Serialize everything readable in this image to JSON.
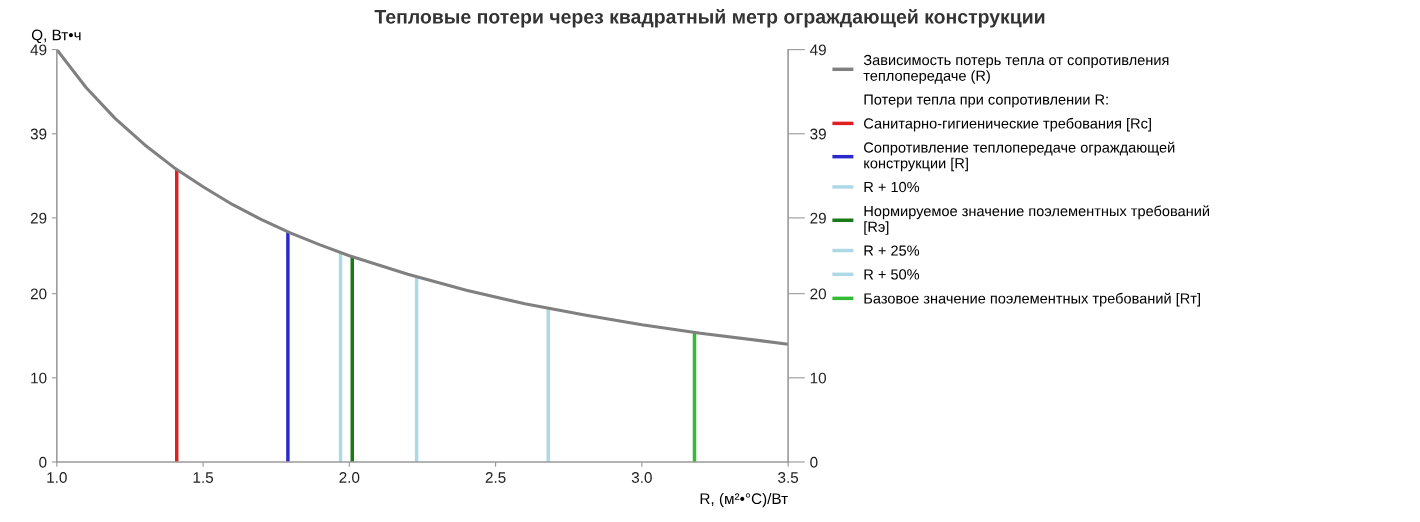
{
  "chart_data": {
    "type": "line",
    "title": "Тепловые потери через квадратный метр ограждающей конструкции",
    "xlabel": "R, (м²•°C)/Вт",
    "ylabel": "Q, Вт•ч",
    "annotations": [
      "Потери тепла при сопротивлении R:"
    ],
    "xlim": [
      1.0,
      3.5
    ],
    "xticks": [
      {
        "value": 1.0,
        "label": "1.0"
      },
      1.5,
      {
        "value": 2.0,
        "label": "2.0"
      },
      2.5,
      {
        "value": 3.0,
        "label": "3.0"
      },
      3.5
    ],
    "ylim": [
      0,
      49
    ],
    "yticks": [
      0,
      10,
      20,
      29,
      39,
      49
    ],
    "y2lim": [
      0,
      49
    ],
    "y2ticks": [
      0,
      10,
      20,
      29,
      39,
      49
    ],
    "grid": false,
    "legend": "right",
    "marker": "none",
    "line_style": "solid",
    "series": [
      {
        "name": "Зависимость потерь тепла от сопротивления теплопередаче (R)",
        "color": "#808080",
        "x": [
          1.0,
          1.1,
          1.2,
          1.3,
          1.4,
          1.5,
          1.6,
          1.7,
          1.8,
          1.9,
          2.0,
          2.2,
          2.4,
          2.6,
          2.8,
          3.0,
          3.2,
          3.5
        ],
        "values": [
          49,
          44.5,
          40.8,
          37.7,
          35.0,
          32.7,
          30.6,
          28.8,
          27.2,
          25.8,
          24.5,
          22.3,
          20.4,
          18.8,
          17.5,
          16.3,
          15.3,
          14.0
        ]
      },
      {
        "name": "Санитарно-гигиенические требования [Rc]",
        "color": "#e02020",
        "x": [
          1.41,
          1.41
        ],
        "values": [
          0,
          34.7
        ]
      },
      {
        "name": "Сопротивление теплопередаче ограждающей конструкции [R]",
        "color": "#2a2acc",
        "x": [
          1.79,
          1.79
        ],
        "values": [
          0,
          27.4
        ]
      },
      {
        "name": "R + 10%",
        "color": "#add8e6",
        "x": [
          1.97,
          1.97
        ],
        "values": [
          0,
          24.9
        ]
      },
      {
        "name": "Нормируемое значение поэлементных требований [Rэ]",
        "color": "#1a7a1a",
        "x": [
          2.01,
          2.01
        ],
        "values": [
          0,
          24.4
        ]
      },
      {
        "name": "R + 25%",
        "color": "#add8e6",
        "x": [
          2.23,
          2.23
        ],
        "values": [
          0,
          22.0
        ]
      },
      {
        "name": "R + 50%",
        "color": "#add8e6",
        "x": [
          2.68,
          2.68
        ],
        "values": [
          0,
          18.3
        ]
      },
      {
        "name": "Базовое значение поэлементных требований [Rт]",
        "color": "#33bb33",
        "x": [
          3.18,
          3.18
        ],
        "values": [
          0,
          15.4
        ]
      }
    ]
  }
}
